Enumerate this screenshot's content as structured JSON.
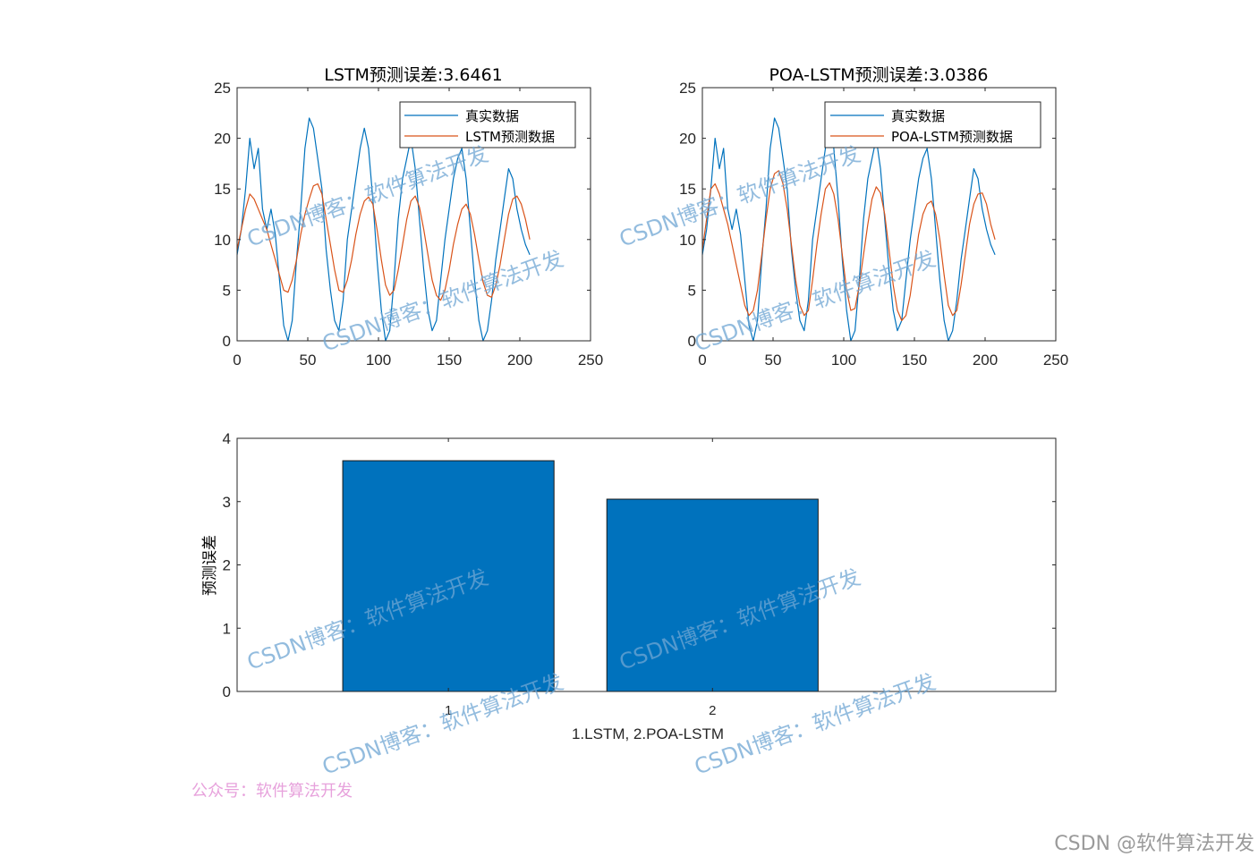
{
  "chart_data": [
    {
      "type": "line",
      "title": "LSTM预测误差:3.6461",
      "xlim": [
        0,
        250
      ],
      "ylim": [
        0,
        25
      ],
      "xticks": [
        0,
        50,
        100,
        150,
        200,
        250
      ],
      "yticks": [
        0,
        5,
        10,
        15,
        20,
        25
      ],
      "legend": "top-right",
      "series": [
        {
          "name": "真实数据",
          "color": "#0072bd",
          "x": [
            0,
            3,
            6,
            9,
            12,
            15,
            18,
            21,
            24,
            27,
            30,
            33,
            36,
            39,
            42,
            45,
            48,
            51,
            54,
            57,
            60,
            63,
            66,
            69,
            72,
            75,
            78,
            81,
            84,
            87,
            90,
            93,
            96,
            99,
            102,
            105,
            108,
            111,
            114,
            117,
            120,
            123,
            126,
            129,
            132,
            135,
            138,
            141,
            144,
            147,
            150,
            153,
            156,
            159,
            162,
            165,
            168,
            171,
            174,
            177,
            180,
            183,
            186,
            189,
            192,
            195,
            198,
            201,
            204,
            207
          ],
          "y": [
            8.5,
            11,
            15,
            20,
            17,
            19,
            13,
            11,
            13,
            10.5,
            6,
            1.5,
            0,
            2,
            8,
            13,
            19,
            22,
            21,
            18,
            15,
            9,
            5,
            2,
            1,
            4,
            10,
            13,
            16,
            19,
            21,
            19,
            14,
            8,
            3,
            0,
            1,
            6,
            12,
            16,
            18,
            20,
            17,
            12,
            7,
            3,
            1,
            2,
            6,
            10,
            13,
            16,
            18,
            19,
            16,
            11,
            6,
            2,
            0,
            1,
            4,
            8,
            11,
            14,
            17,
            16,
            13,
            11,
            9.5,
            8.5
          ]
        },
        {
          "name": "LSTM预测数据",
          "color": "#d95319",
          "x": [
            0,
            3,
            6,
            9,
            12,
            15,
            18,
            21,
            24,
            27,
            30,
            33,
            36,
            39,
            42,
            45,
            48,
            51,
            54,
            57,
            60,
            63,
            66,
            69,
            72,
            75,
            78,
            81,
            84,
            87,
            90,
            93,
            96,
            99,
            102,
            105,
            108,
            111,
            114,
            117,
            120,
            123,
            126,
            129,
            132,
            135,
            138,
            141,
            144,
            147,
            150,
            153,
            156,
            159,
            162,
            165,
            168,
            171,
            174,
            177,
            180,
            183,
            186,
            189,
            192,
            195,
            198,
            201,
            204,
            207
          ],
          "y": [
            9,
            11,
            13,
            14.5,
            14,
            13,
            12,
            11,
            9.5,
            8,
            6.5,
            5,
            4.8,
            6,
            8,
            10.5,
            12.5,
            14,
            15.3,
            15.5,
            14.5,
            12,
            9.5,
            7,
            5,
            4.8,
            6,
            8,
            10.5,
            12.5,
            13.8,
            14.2,
            13.5,
            11,
            8,
            5.5,
            4.5,
            5,
            7,
            9.5,
            12,
            13.8,
            14.3,
            13.2,
            11,
            8.5,
            6,
            4.5,
            4,
            5,
            7,
            9.5,
            11.5,
            13,
            13.5,
            12.5,
            10.5,
            8,
            5.8,
            4.5,
            4.3,
            5.5,
            7.5,
            10,
            12.5,
            14,
            14.3,
            13.5,
            12,
            10
          ]
        }
      ]
    },
    {
      "type": "line",
      "title": "POA-LSTM预测误差:3.0386",
      "xlim": [
        0,
        250
      ],
      "ylim": [
        0,
        25
      ],
      "xticks": [
        0,
        50,
        100,
        150,
        200,
        250
      ],
      "yticks": [
        0,
        5,
        10,
        15,
        20,
        25
      ],
      "legend": "top-right",
      "series": [
        {
          "name": "真实数据",
          "color": "#0072bd",
          "x": [
            0,
            3,
            6,
            9,
            12,
            15,
            18,
            21,
            24,
            27,
            30,
            33,
            36,
            39,
            42,
            45,
            48,
            51,
            54,
            57,
            60,
            63,
            66,
            69,
            72,
            75,
            78,
            81,
            84,
            87,
            90,
            93,
            96,
            99,
            102,
            105,
            108,
            111,
            114,
            117,
            120,
            123,
            126,
            129,
            132,
            135,
            138,
            141,
            144,
            147,
            150,
            153,
            156,
            159,
            162,
            165,
            168,
            171,
            174,
            177,
            180,
            183,
            186,
            189,
            192,
            195,
            198,
            201,
            204,
            207
          ],
          "y": [
            8.5,
            11,
            15,
            20,
            17,
            19,
            13,
            11,
            13,
            10.5,
            6,
            1.5,
            0,
            2,
            8,
            13,
            19,
            22,
            21,
            18,
            15,
            9,
            5,
            2,
            1,
            4,
            10,
            13,
            16,
            19,
            21,
            19,
            14,
            8,
            3,
            0,
            1,
            6,
            12,
            16,
            18,
            20,
            17,
            12,
            7,
            3,
            1,
            2,
            6,
            10,
            13,
            16,
            18,
            19,
            16,
            11,
            6,
            2,
            0,
            1,
            4,
            8,
            11,
            14,
            17,
            16,
            13,
            11,
            9.5,
            8.5
          ]
        },
        {
          "name": "POA-LSTM预测数据",
          "color": "#d95319",
          "x": [
            0,
            3,
            6,
            9,
            12,
            15,
            18,
            21,
            24,
            27,
            30,
            33,
            36,
            39,
            42,
            45,
            48,
            51,
            54,
            57,
            60,
            63,
            66,
            69,
            72,
            75,
            78,
            81,
            84,
            87,
            90,
            93,
            96,
            99,
            102,
            105,
            108,
            111,
            114,
            117,
            120,
            123,
            126,
            129,
            132,
            135,
            138,
            141,
            144,
            147,
            150,
            153,
            156,
            159,
            162,
            165,
            168,
            171,
            174,
            177,
            180,
            183,
            186,
            189,
            192,
            195,
            198,
            201,
            204,
            207
          ],
          "y": [
            9,
            12,
            15,
            15.5,
            14.5,
            13,
            11.5,
            9.5,
            7.5,
            5.5,
            3.5,
            2.5,
            3,
            5,
            8.5,
            12,
            15,
            16.5,
            16.8,
            15.5,
            13,
            9.5,
            6,
            3.5,
            2.5,
            3,
            6,
            9.5,
            12.5,
            15,
            15.6,
            14.5,
            12,
            8.5,
            5,
            3,
            3.2,
            5.5,
            8.5,
            11.5,
            14,
            15.2,
            14.6,
            12.5,
            9,
            5.5,
            3,
            2,
            2.5,
            4.5,
            7.5,
            10.5,
            12.5,
            13.5,
            13.8,
            12.5,
            10,
            6.5,
            3.5,
            2.5,
            3,
            5.5,
            8.5,
            11.5,
            13.5,
            14.5,
            14.6,
            13.5,
            11.5,
            10
          ]
        }
      ]
    },
    {
      "type": "bar",
      "categories": [
        "1",
        "2"
      ],
      "values": [
        3.6461,
        3.0386
      ],
      "color": "#0072bd",
      "xlabel": "1.LSTM,       2.POA-LSTM",
      "ylabel": "预测误差",
      "xlim": [
        0.2,
        3.3
      ],
      "ylim": [
        0,
        4
      ],
      "yticks": [
        0,
        1,
        2,
        3,
        4
      ]
    }
  ],
  "watermarks": {
    "csdn": "CSDN博客：软件算法开发",
    "official": "公众号：软件算法开发",
    "corner": "CSDN @软件算法开发"
  }
}
